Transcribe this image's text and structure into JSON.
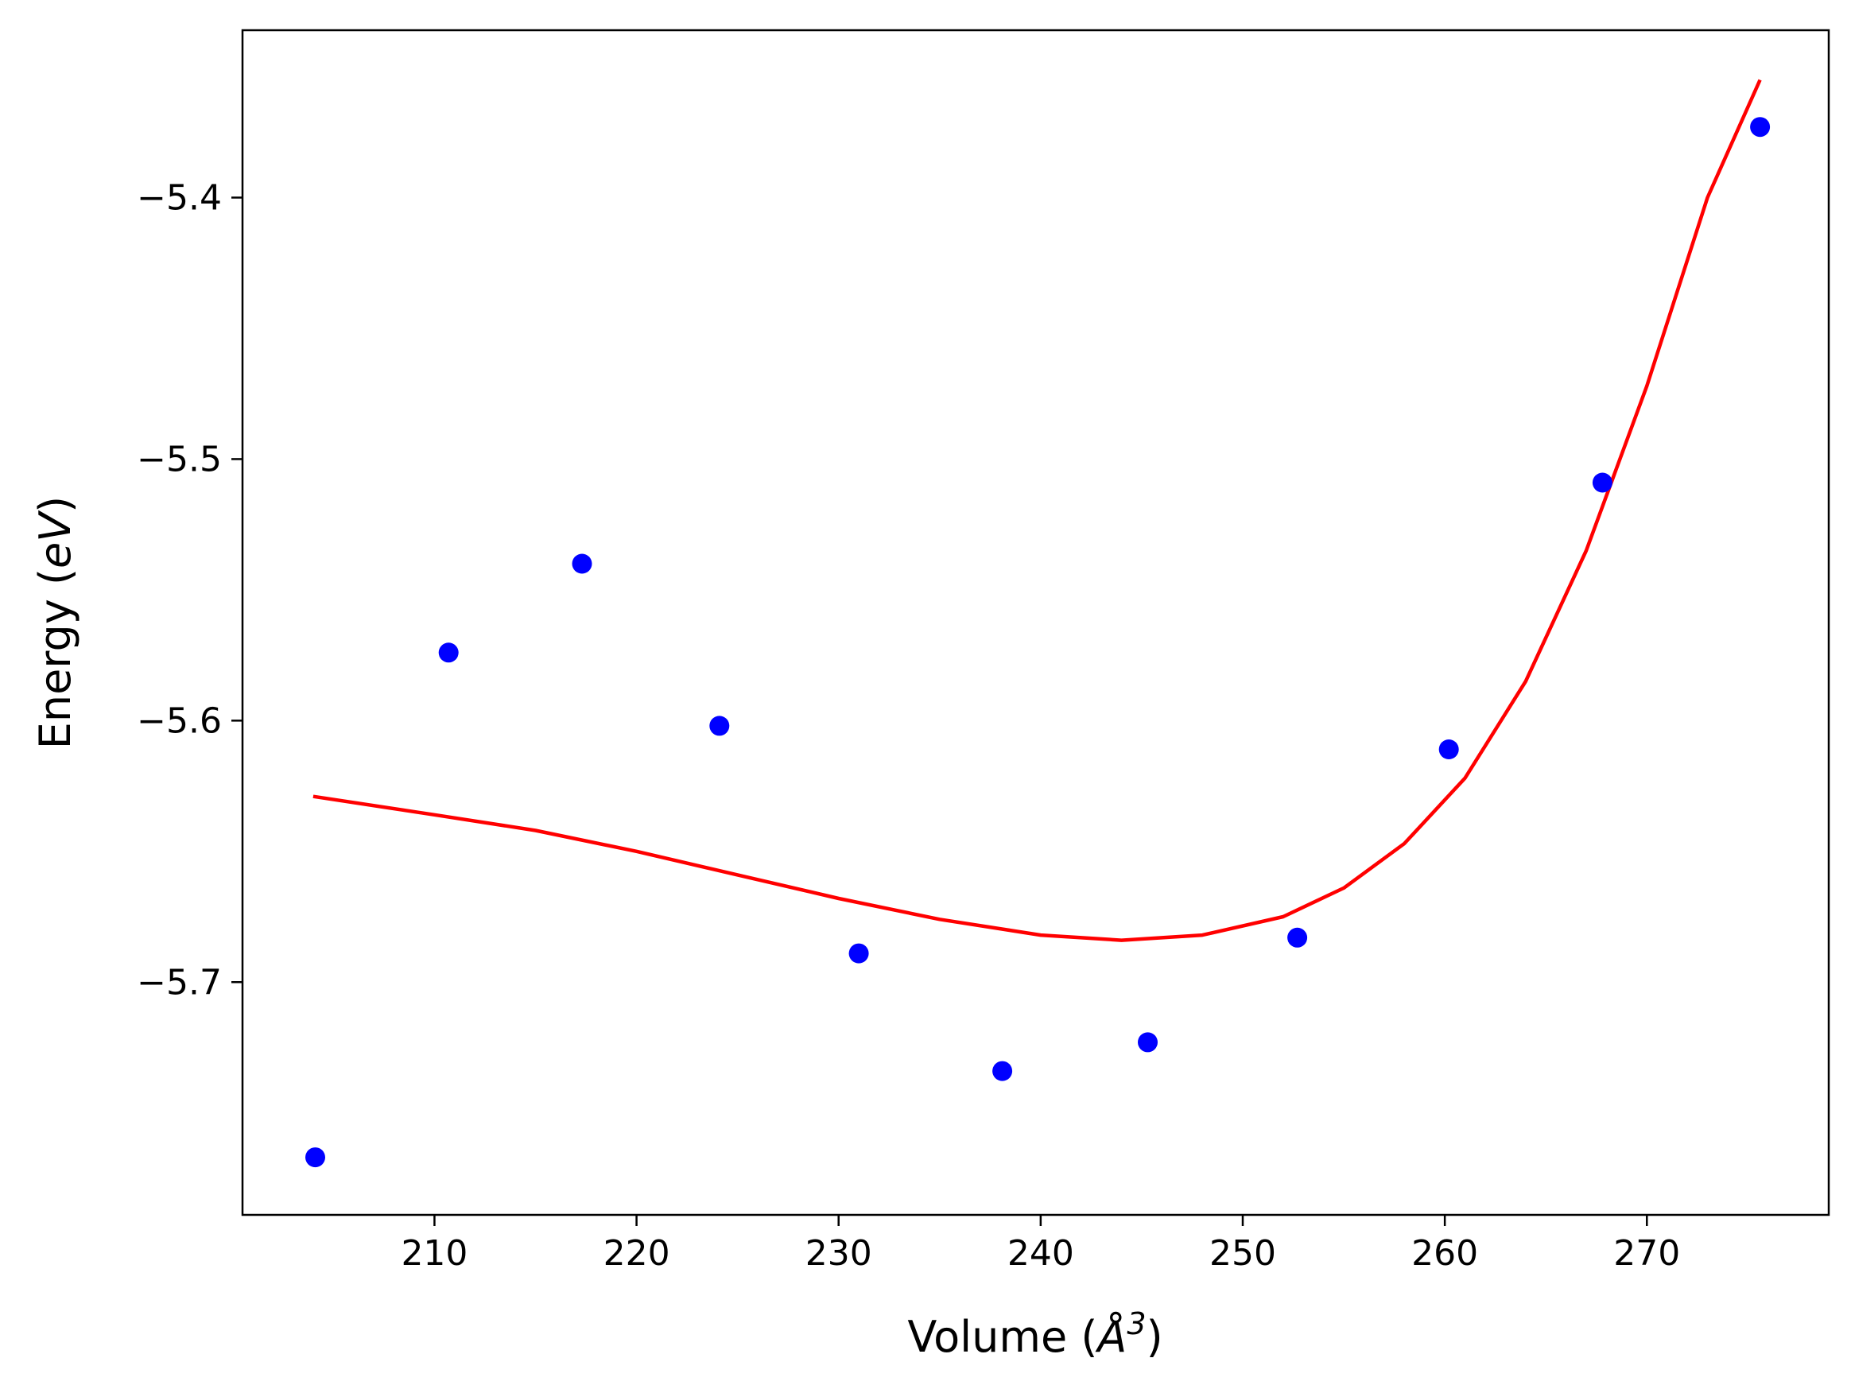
{
  "chart_data": {
    "type": "scatter",
    "xlabel": "Volume (",
    "xlabel_symbol": "Å",
    "xlabel_exp": "3",
    "xlabel_end": ")",
    "ylabel": "Energy (",
    "ylabel_unit": "eV",
    "ylabel_end": ")",
    "xlim": [
      200.5,
      279.0
    ],
    "ylim": [
      -5.789,
      -5.336
    ],
    "xticks": [
      210,
      220,
      230,
      240,
      250,
      260,
      270
    ],
    "yticks": [
      -5.7,
      -5.6,
      -5.5,
      -5.4
    ],
    "xtick_labels": [
      "210",
      "220",
      "230",
      "240",
      "250",
      "260",
      "270"
    ],
    "ytick_labels": [
      "−5.7",
      "−5.6",
      "−5.5",
      "−5.4"
    ],
    "grid": false,
    "series": [
      {
        "kind": "scatter",
        "color": "#0000ff",
        "points": [
          {
            "x": 204.1,
            "y": -5.767
          },
          {
            "x": 210.7,
            "y": -5.574
          },
          {
            "x": 217.3,
            "y": -5.54
          },
          {
            "x": 224.1,
            "y": -5.602
          },
          {
            "x": 231.0,
            "y": -5.689
          },
          {
            "x": 238.1,
            "y": -5.734
          },
          {
            "x": 245.3,
            "y": -5.723
          },
          {
            "x": 252.7,
            "y": -5.683
          },
          {
            "x": 260.2,
            "y": -5.611
          },
          {
            "x": 267.8,
            "y": -5.509
          },
          {
            "x": 275.6,
            "y": -5.373
          }
        ]
      },
      {
        "kind": "line",
        "color": "#ff0000",
        "points": [
          {
            "x": 204.0,
            "y": -5.629
          },
          {
            "x": 210.0,
            "y": -5.636
          },
          {
            "x": 215.0,
            "y": -5.642
          },
          {
            "x": 220.0,
            "y": -5.65
          },
          {
            "x": 225.0,
            "y": -5.659
          },
          {
            "x": 230.0,
            "y": -5.668
          },
          {
            "x": 235.0,
            "y": -5.676
          },
          {
            "x": 240.0,
            "y": -5.682
          },
          {
            "x": 244.0,
            "y": -5.684
          },
          {
            "x": 248.0,
            "y": -5.682
          },
          {
            "x": 252.0,
            "y": -5.675
          },
          {
            "x": 255.0,
            "y": -5.664
          },
          {
            "x": 258.0,
            "y": -5.647
          },
          {
            "x": 261.0,
            "y": -5.622
          },
          {
            "x": 264.0,
            "y": -5.585
          },
          {
            "x": 267.0,
            "y": -5.535
          },
          {
            "x": 270.0,
            "y": -5.472
          },
          {
            "x": 273.0,
            "y": -5.4
          },
          {
            "x": 275.6,
            "y": -5.355
          }
        ]
      }
    ]
  }
}
